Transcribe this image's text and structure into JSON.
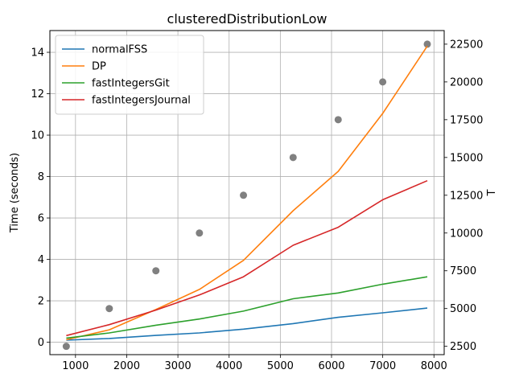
{
  "chart_data": {
    "type": "line",
    "title": "clusteredDistributionLow",
    "ylabel": "Time (seconds)",
    "y2label": "T",
    "xlabel": "",
    "xlim": [
      500,
      8200
    ],
    "ylim": [
      -0.6,
      15.05
    ],
    "y2lim": [
      1950,
      23400
    ],
    "grid": true,
    "legend_position": "upper-left",
    "xticks": [
      1000,
      2000,
      3000,
      4000,
      5000,
      6000,
      7000,
      8000
    ],
    "yticks": [
      0,
      2,
      4,
      6,
      8,
      10,
      12,
      14
    ],
    "y2ticks": [
      2500,
      5000,
      7500,
      10000,
      12500,
      15000,
      17500,
      20000,
      22500
    ],
    "x": [
      820,
      1660,
      2570,
      3420,
      4280,
      5250,
      6130,
      7000,
      7870
    ],
    "series": [
      {
        "name": "normalFSS",
        "color": "#1f77b4",
        "values": [
          0.1,
          0.18,
          0.33,
          0.45,
          0.63,
          0.9,
          1.2,
          1.42,
          1.65
        ]
      },
      {
        "name": "DP",
        "color": "#ff7f0e",
        "values": [
          0.12,
          0.6,
          1.58,
          2.55,
          3.95,
          6.35,
          8.25,
          11.05,
          14.3
        ]
      },
      {
        "name": "fastIntegersGit",
        "color": "#2ca02c",
        "values": [
          0.2,
          0.45,
          0.82,
          1.12,
          1.5,
          2.1,
          2.38,
          2.8,
          3.16
        ]
      },
      {
        "name": "fastIntegersJournal",
        "color": "#d62728",
        "values": [
          0.32,
          0.85,
          1.55,
          2.28,
          3.16,
          4.68,
          5.55,
          6.88,
          7.8
        ]
      }
    ],
    "scatter_secondary": {
      "color": "#808080",
      "values": [
        2500,
        5000,
        7500,
        10000,
        12500,
        15000,
        17500,
        20000,
        22500
      ]
    }
  }
}
